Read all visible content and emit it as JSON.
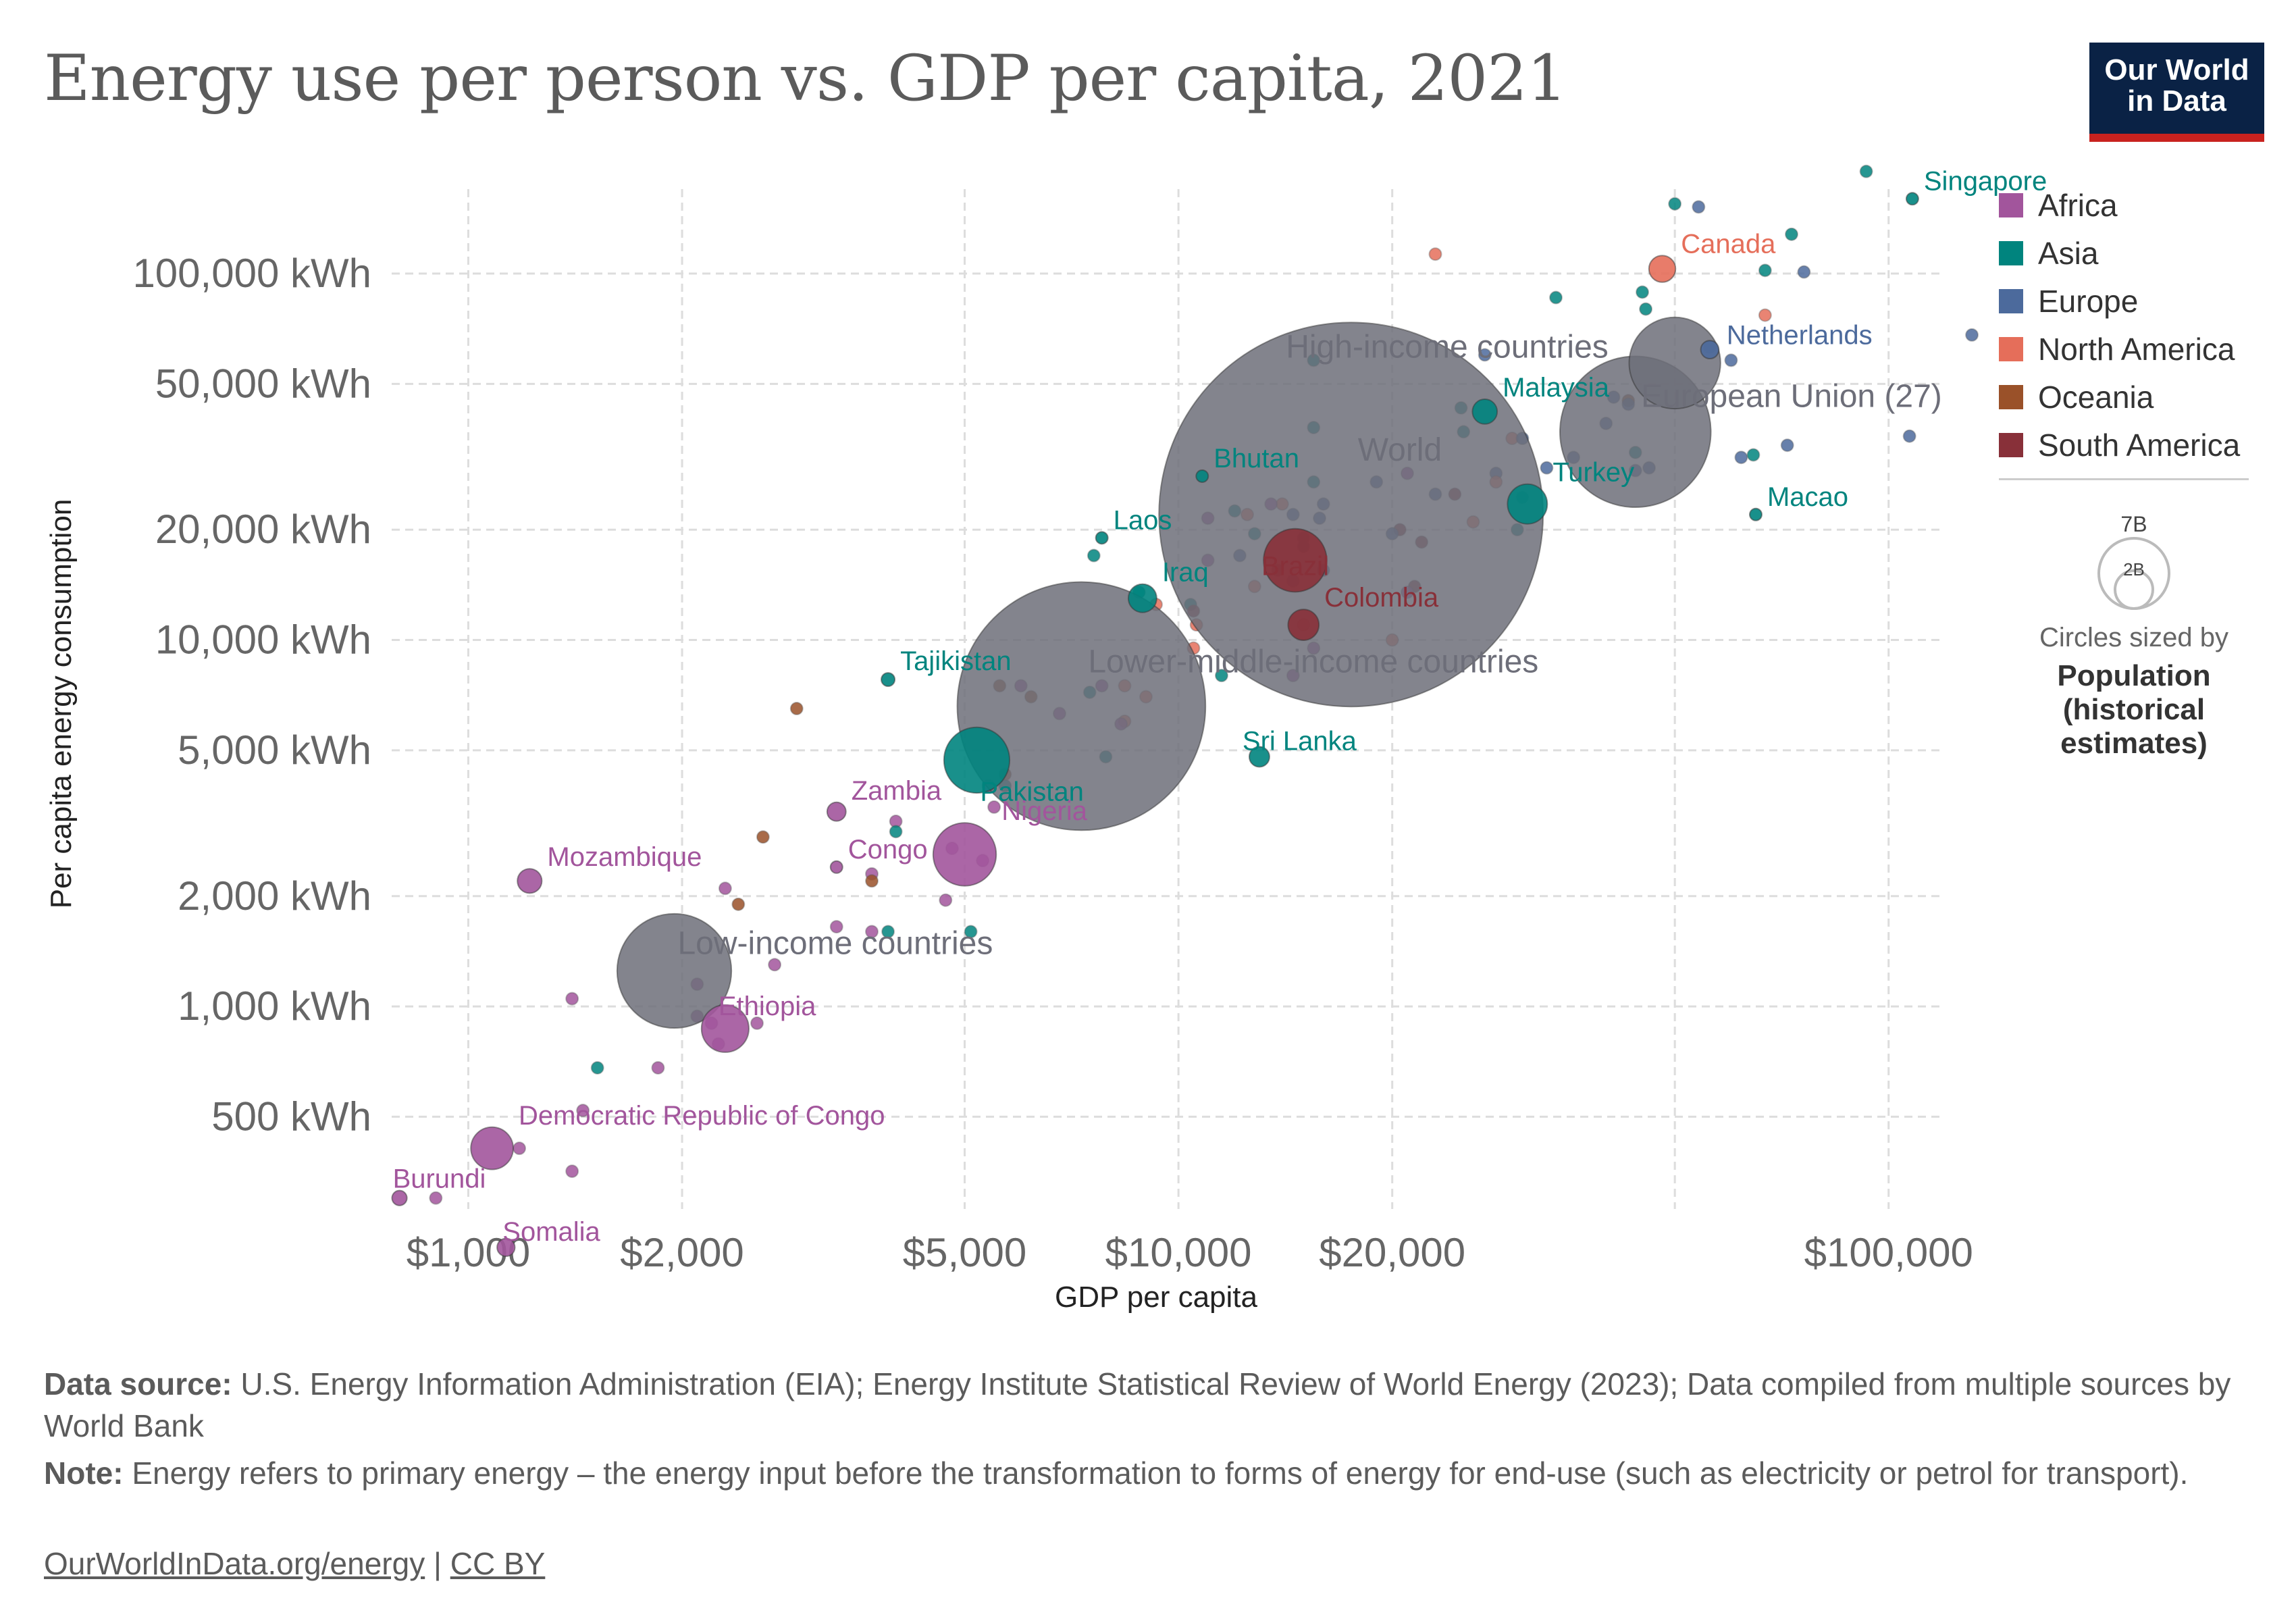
{
  "header": {
    "title": "Energy use per person vs. GDP per capita, 2021",
    "logo_line1": "Our World",
    "logo_line2": "in Data"
  },
  "legend": {
    "items": [
      {
        "label": "Africa",
        "color": "#a2559c"
      },
      {
        "label": "Asia",
        "color": "#00847e"
      },
      {
        "label": "Europe",
        "color": "#4c6a9c"
      },
      {
        "label": "North America",
        "color": "#e56e5a"
      },
      {
        "label": "Oceania",
        "color": "#9a5129"
      },
      {
        "label": "South America",
        "color": "#883039"
      }
    ],
    "size_labels": [
      "7B",
      "2B"
    ],
    "size_caption": "Circles sized by",
    "size_variable": "Population (historical estimates)"
  },
  "chart_data": {
    "type": "scatter",
    "xlabel": "GDP per capita",
    "ylabel": "Per capita energy consumption",
    "x_scale": "log",
    "y_scale": "log",
    "xlim": [
      780,
      120000
    ],
    "ylim": [
      280,
      170000
    ],
    "x_ticks": [
      {
        "value": 1000,
        "label": "$1,000"
      },
      {
        "value": 2000,
        "label": "$2,000"
      },
      {
        "value": 5000,
        "label": "$5,000"
      },
      {
        "value": 10000,
        "label": "$10,000"
      },
      {
        "value": 20000,
        "label": "$20,000"
      },
      {
        "value": 100000,
        "label": "$100,000"
      }
    ],
    "x_extra_gridlines": [
      50000
    ],
    "y_ticks": [
      {
        "value": 500,
        "label": "500 kWh"
      },
      {
        "value": 1000,
        "label": "1,000 kWh"
      },
      {
        "value": 2000,
        "label": "2,000 kWh"
      },
      {
        "value": 5000,
        "label": "5,000 kWh"
      },
      {
        "value": 10000,
        "label": "10,000 kWh"
      },
      {
        "value": 20000,
        "label": "20,000 kWh"
      },
      {
        "value": 50000,
        "label": "50,000 kWh"
      },
      {
        "value": 100000,
        "label": "100,000 kWh"
      }
    ],
    "grid": true,
    "legend_position": "right",
    "labeled_points": [
      {
        "name": "Singapore",
        "region": "Asia",
        "x": 108000,
        "y": 160000,
        "pop": 5.9
      },
      {
        "name": "Canada",
        "region": "North America",
        "x": 48000,
        "y": 103000,
        "pop": 38
      },
      {
        "name": "Netherlands",
        "region": "Europe",
        "x": 56000,
        "y": 62000,
        "pop": 17.5
      },
      {
        "name": "European Union (27)",
        "region": "Other",
        "x": 50000,
        "y": 57000,
        "pop": 447
      },
      {
        "name": "High-income countries",
        "region": "Other",
        "x": 44000,
        "y": 37000,
        "pop": 1220
      },
      {
        "name": "Malaysia",
        "region": "Asia",
        "x": 27000,
        "y": 42000,
        "pop": 33
      },
      {
        "name": "Macao",
        "region": "Asia",
        "x": 65000,
        "y": 22000,
        "pop": 0.7
      },
      {
        "name": "Turkey",
        "region": "Asia",
        "x": 31000,
        "y": 23500,
        "pop": 85
      },
      {
        "name": "World",
        "region": "Other",
        "x": 17500,
        "y": 22000,
        "pop": 7900
      },
      {
        "name": "Bhutan",
        "region": "Asia",
        "x": 10800,
        "y": 28000,
        "pop": 0.8
      },
      {
        "name": "Laos",
        "region": "Asia",
        "x": 7800,
        "y": 19000,
        "pop": 7.4
      },
      {
        "name": "Brazil",
        "region": "South America",
        "x": 14600,
        "y": 16500,
        "pop": 214
      },
      {
        "name": "Iraq",
        "region": "Asia",
        "x": 8900,
        "y": 13000,
        "pop": 43
      },
      {
        "name": "Colombia",
        "region": "South America",
        "x": 15000,
        "y": 11000,
        "pop": 51
      },
      {
        "name": "Lower-middle-income countries",
        "region": "Other",
        "x": 7300,
        "y": 6600,
        "pop": 3300
      },
      {
        "name": "Tajikistan",
        "region": "Asia",
        "x": 3900,
        "y": 7800,
        "pop": 9.8
      },
      {
        "name": "Sri Lanka",
        "region": "Asia",
        "x": 13000,
        "y": 4800,
        "pop": 22
      },
      {
        "name": "Pakistan",
        "region": "Asia",
        "x": 5200,
        "y": 4700,
        "pop": 231
      },
      {
        "name": "Zambia",
        "region": "Africa",
        "x": 3300,
        "y": 3400,
        "pop": 19
      },
      {
        "name": "Nigeria",
        "region": "Africa",
        "x": 5000,
        "y": 2600,
        "pop": 213
      },
      {
        "name": "Congo",
        "region": "Africa",
        "x": 3300,
        "y": 2400,
        "pop": 5.8
      },
      {
        "name": "Mozambique",
        "region": "Africa",
        "x": 1220,
        "y": 2200,
        "pop": 32
      },
      {
        "name": "Low-income countries",
        "region": "Other",
        "x": 1950,
        "y": 1250,
        "pop": 700
      },
      {
        "name": "Ethiopia",
        "region": "Africa",
        "x": 2300,
        "y": 870,
        "pop": 120
      },
      {
        "name": "Democratic Republic of Congo",
        "region": "Africa",
        "x": 1080,
        "y": 410,
        "pop": 96
      },
      {
        "name": "Burundi",
        "region": "Africa",
        "x": 800,
        "y": 300,
        "pop": 12
      },
      {
        "name": "Somalia",
        "region": "Africa",
        "x": 1130,
        "y": 220,
        "pop": 17
      }
    ],
    "points": [
      {
        "region": "Asia",
        "x": 93000,
        "y": 190000
      },
      {
        "region": "Asia",
        "x": 50000,
        "y": 155000
      },
      {
        "region": "Europe",
        "x": 54000,
        "y": 152000
      },
      {
        "region": "Asia",
        "x": 73000,
        "y": 128000
      },
      {
        "region": "North America",
        "x": 23000,
        "y": 113000
      },
      {
        "region": "Asia",
        "x": 67000,
        "y": 102000
      },
      {
        "region": "Europe",
        "x": 76000,
        "y": 101000
      },
      {
        "region": "Asia",
        "x": 34000,
        "y": 86000
      },
      {
        "region": "Asia",
        "x": 45000,
        "y": 89000
      },
      {
        "region": "Asia",
        "x": 45500,
        "y": 80000
      },
      {
        "region": "North America",
        "x": 67000,
        "y": 77000
      },
      {
        "region": "Europe",
        "x": 131000,
        "y": 68000
      },
      {
        "region": "Europe",
        "x": 56000,
        "y": 63000
      },
      {
        "region": "Europe",
        "x": 27000,
        "y": 60000
      },
      {
        "region": "Asia",
        "x": 15500,
        "y": 58000
      },
      {
        "region": "Europe",
        "x": 60000,
        "y": 58000
      },
      {
        "region": "Oceania",
        "x": 43000,
        "y": 45000
      },
      {
        "region": "Europe",
        "x": 41000,
        "y": 46000
      },
      {
        "region": "Europe",
        "x": 43000,
        "y": 44000
      },
      {
        "region": "Asia",
        "x": 25000,
        "y": 43000
      },
      {
        "region": "Europe",
        "x": 40000,
        "y": 39000
      },
      {
        "region": "Asia",
        "x": 15500,
        "y": 38000
      },
      {
        "region": "Asia",
        "x": 25200,
        "y": 37000
      },
      {
        "region": "North America",
        "x": 29500,
        "y": 35500
      },
      {
        "region": "Europe",
        "x": 30500,
        "y": 35500
      },
      {
        "region": "Europe",
        "x": 107000,
        "y": 36000
      },
      {
        "region": "Europe",
        "x": 72000,
        "y": 34000
      },
      {
        "region": "Asia",
        "x": 44000,
        "y": 32500
      },
      {
        "region": "Europe",
        "x": 36000,
        "y": 31500
      },
      {
        "region": "Europe",
        "x": 62000,
        "y": 31500
      },
      {
        "region": "Asia",
        "x": 64500,
        "y": 32000
      },
      {
        "region": "Europe",
        "x": 33000,
        "y": 29500
      },
      {
        "region": "Europe",
        "x": 46000,
        "y": 29500
      },
      {
        "region": "Europe",
        "x": 44000,
        "y": 29000
      },
      {
        "region": "Africa",
        "x": 21000,
        "y": 28500
      },
      {
        "region": "Europe",
        "x": 28000,
        "y": 28500
      },
      {
        "region": "North America",
        "x": 28000,
        "y": 27000
      },
      {
        "region": "Europe",
        "x": 19000,
        "y": 27000
      },
      {
        "region": "Asia",
        "x": 15500,
        "y": 27000
      },
      {
        "region": "South America",
        "x": 24500,
        "y": 25000
      },
      {
        "region": "Europe",
        "x": 23000,
        "y": 25000
      },
      {
        "region": "Asia",
        "x": 30500,
        "y": 24500
      },
      {
        "region": "Europe",
        "x": 16000,
        "y": 23500
      },
      {
        "region": "North America",
        "x": 14000,
        "y": 23500
      },
      {
        "region": "Africa",
        "x": 13500,
        "y": 23500
      },
      {
        "region": "Asia",
        "x": 12000,
        "y": 22500
      },
      {
        "region": "North America",
        "x": 12500,
        "y": 22000
      },
      {
        "region": "Europe",
        "x": 14500,
        "y": 22000
      },
      {
        "region": "Africa",
        "x": 11000,
        "y": 21500
      },
      {
        "region": "Europe",
        "x": 15800,
        "y": 21500
      },
      {
        "region": "North America",
        "x": 26000,
        "y": 21000
      },
      {
        "region": "Asia",
        "x": 30000,
        "y": 20000
      },
      {
        "region": "South America",
        "x": 20500,
        "y": 20000
      },
      {
        "region": "Europe",
        "x": 20000,
        "y": 19500
      },
      {
        "region": "Asia",
        "x": 15000,
        "y": 19000
      },
      {
        "region": "Asia",
        "x": 12800,
        "y": 19500
      },
      {
        "region": "South America",
        "x": 22000,
        "y": 18500
      },
      {
        "region": "Asia",
        "x": 15000,
        "y": 18000
      },
      {
        "region": "Europe",
        "x": 12200,
        "y": 17000
      },
      {
        "region": "Asia",
        "x": 7600,
        "y": 17000
      },
      {
        "region": "Africa",
        "x": 11000,
        "y": 16500
      },
      {
        "region": "South America",
        "x": 13800,
        "y": 15500
      },
      {
        "region": "Europe",
        "x": 16000,
        "y": 15500
      },
      {
        "region": "Europe",
        "x": 14500,
        "y": 14500
      },
      {
        "region": "North America",
        "x": 12800,
        "y": 14000
      },
      {
        "region": "South America",
        "x": 21500,
        "y": 14000
      },
      {
        "region": "Africa",
        "x": 21000,
        "y": 13500
      },
      {
        "region": "Asia",
        "x": 8800,
        "y": 13500
      },
      {
        "region": "North America",
        "x": 9300,
        "y": 12500
      },
      {
        "region": "Asia",
        "x": 10400,
        "y": 12500
      },
      {
        "region": "South America",
        "x": 10500,
        "y": 12000
      },
      {
        "region": "North America",
        "x": 10600,
        "y": 11000
      },
      {
        "region": "North America",
        "x": 15000,
        "y": 11000
      },
      {
        "region": "North America",
        "x": 20000,
        "y": 10000
      },
      {
        "region": "Africa",
        "x": 15500,
        "y": 9500
      },
      {
        "region": "North America",
        "x": 10500,
        "y": 9500
      },
      {
        "region": "Africa",
        "x": 14500,
        "y": 8000
      },
      {
        "region": "Asia",
        "x": 11500,
        "y": 8000
      },
      {
        "region": "North America",
        "x": 8400,
        "y": 7500
      },
      {
        "region": "Oceania",
        "x": 5600,
        "y": 7500
      },
      {
        "region": "Africa",
        "x": 6000,
        "y": 7500
      },
      {
        "region": "Africa",
        "x": 7800,
        "y": 7500
      },
      {
        "region": "North America",
        "x": 9000,
        "y": 7000
      },
      {
        "region": "Asia",
        "x": 7500,
        "y": 7200
      },
      {
        "region": "Oceania",
        "x": 6200,
        "y": 7000
      },
      {
        "region": "Oceania",
        "x": 2900,
        "y": 6500
      },
      {
        "region": "Africa",
        "x": 6800,
        "y": 6300
      },
      {
        "region": "North America",
        "x": 8400,
        "y": 6000
      },
      {
        "region": "Africa",
        "x": 8300,
        "y": 5900
      },
      {
        "region": "Asia",
        "x": 7900,
        "y": 4800
      },
      {
        "region": "Oceania",
        "x": 5700,
        "y": 4300
      },
      {
        "region": "Asia",
        "x": 5700,
        "y": 4000
      },
      {
        "region": "Africa",
        "x": 5400,
        "y": 4000
      },
      {
        "region": "Africa",
        "x": 5500,
        "y": 3500
      },
      {
        "region": "Africa",
        "x": 4000,
        "y": 3200
      },
      {
        "region": "Asia",
        "x": 4000,
        "y": 3000
      },
      {
        "region": "Oceania",
        "x": 2600,
        "y": 2900
      },
      {
        "region": "Africa",
        "x": 4800,
        "y": 2700
      },
      {
        "region": "Africa",
        "x": 5300,
        "y": 2500
      },
      {
        "region": "Africa",
        "x": 3700,
        "y": 2300
      },
      {
        "region": "Oceania",
        "x": 3700,
        "y": 2200
      },
      {
        "region": "Africa",
        "x": 2300,
        "y": 2100
      },
      {
        "region": "Africa",
        "x": 4700,
        "y": 1950
      },
      {
        "region": "Oceania",
        "x": 2400,
        "y": 1900
      },
      {
        "region": "Africa",
        "x": 3300,
        "y": 1650
      },
      {
        "region": "Africa",
        "x": 3700,
        "y": 1600
      },
      {
        "region": "Asia",
        "x": 3900,
        "y": 1600
      },
      {
        "region": "Asia",
        "x": 5100,
        "y": 1600
      },
      {
        "region": "Africa",
        "x": 2700,
        "y": 1300
      },
      {
        "region": "Africa",
        "x": 2100,
        "y": 1150
      },
      {
        "region": "Africa",
        "x": 1400,
        "y": 1050
      },
      {
        "region": "Africa",
        "x": 2100,
        "y": 940
      },
      {
        "region": "Africa",
        "x": 2200,
        "y": 900
      },
      {
        "region": "Africa",
        "x": 2550,
        "y": 900
      },
      {
        "region": "Africa",
        "x": 2250,
        "y": 790
      },
      {
        "region": "Asia",
        "x": 1520,
        "y": 680
      },
      {
        "region": "Africa",
        "x": 1850,
        "y": 680
      },
      {
        "region": "Africa",
        "x": 1450,
        "y": 520
      },
      {
        "region": "Africa",
        "x": 1180,
        "y": 410
      },
      {
        "region": "Africa",
        "x": 1400,
        "y": 355
      },
      {
        "region": "Africa",
        "x": 900,
        "y": 300
      }
    ]
  },
  "footer": {
    "source_label": "Data source:",
    "source_text": " U.S. Energy Information Administration (EIA); Energy Institute Statistical Review of World Energy (2023); Data compiled from multiple sources by World Bank",
    "note_label": "Note:",
    "note_text": " Energy refers to primary energy – the energy input before the transformation to forms of energy for end-use (such as electricity or petrol for transport).",
    "link_text": "OurWorldInData.org/energy",
    "separator": " | ",
    "license_text": "CC BY"
  }
}
